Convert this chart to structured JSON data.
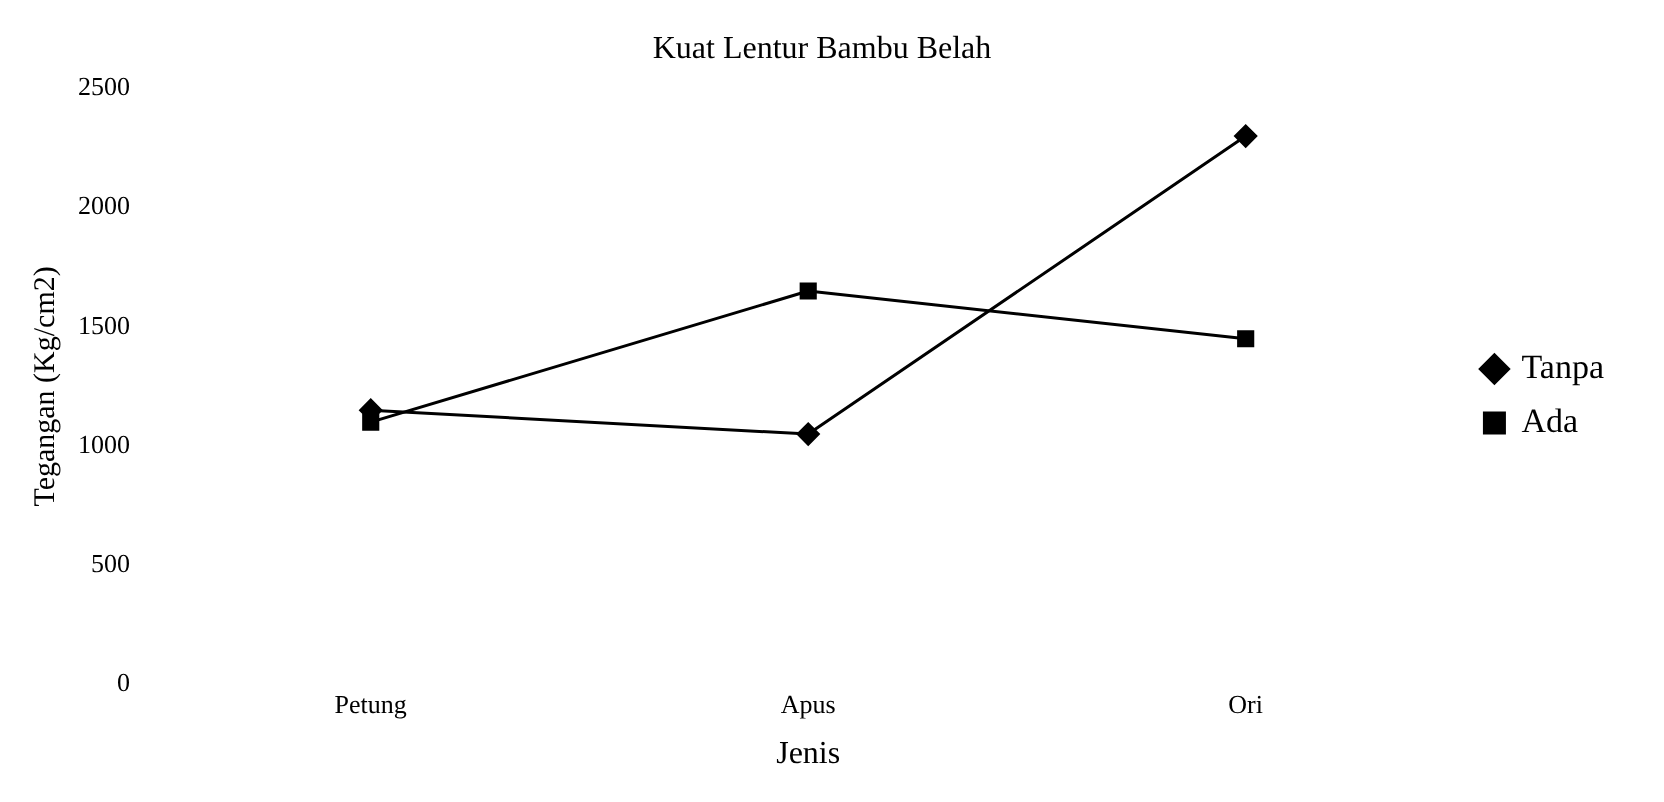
{
  "chart_data": {
    "type": "line",
    "title": "Kuat Lentur Bambu Belah",
    "xlabel": "Jenis",
    "ylabel": "Tegangan (Kg/cm2)",
    "categories": [
      "Petung",
      "Apus",
      "Ori"
    ],
    "series": [
      {
        "name": "Tanpa",
        "color": "#000000",
        "marker": "diamond",
        "values": [
          1150,
          1050,
          2300
        ]
      },
      {
        "name": "Ada",
        "color": "#000000",
        "marker": "square",
        "values": [
          1100,
          1650,
          1450
        ]
      }
    ],
    "ylim": [
      0,
      2500
    ],
    "yticks": [
      0,
      500,
      1000,
      1500,
      2000,
      2500
    ],
    "grid": false,
    "legend": "right"
  }
}
